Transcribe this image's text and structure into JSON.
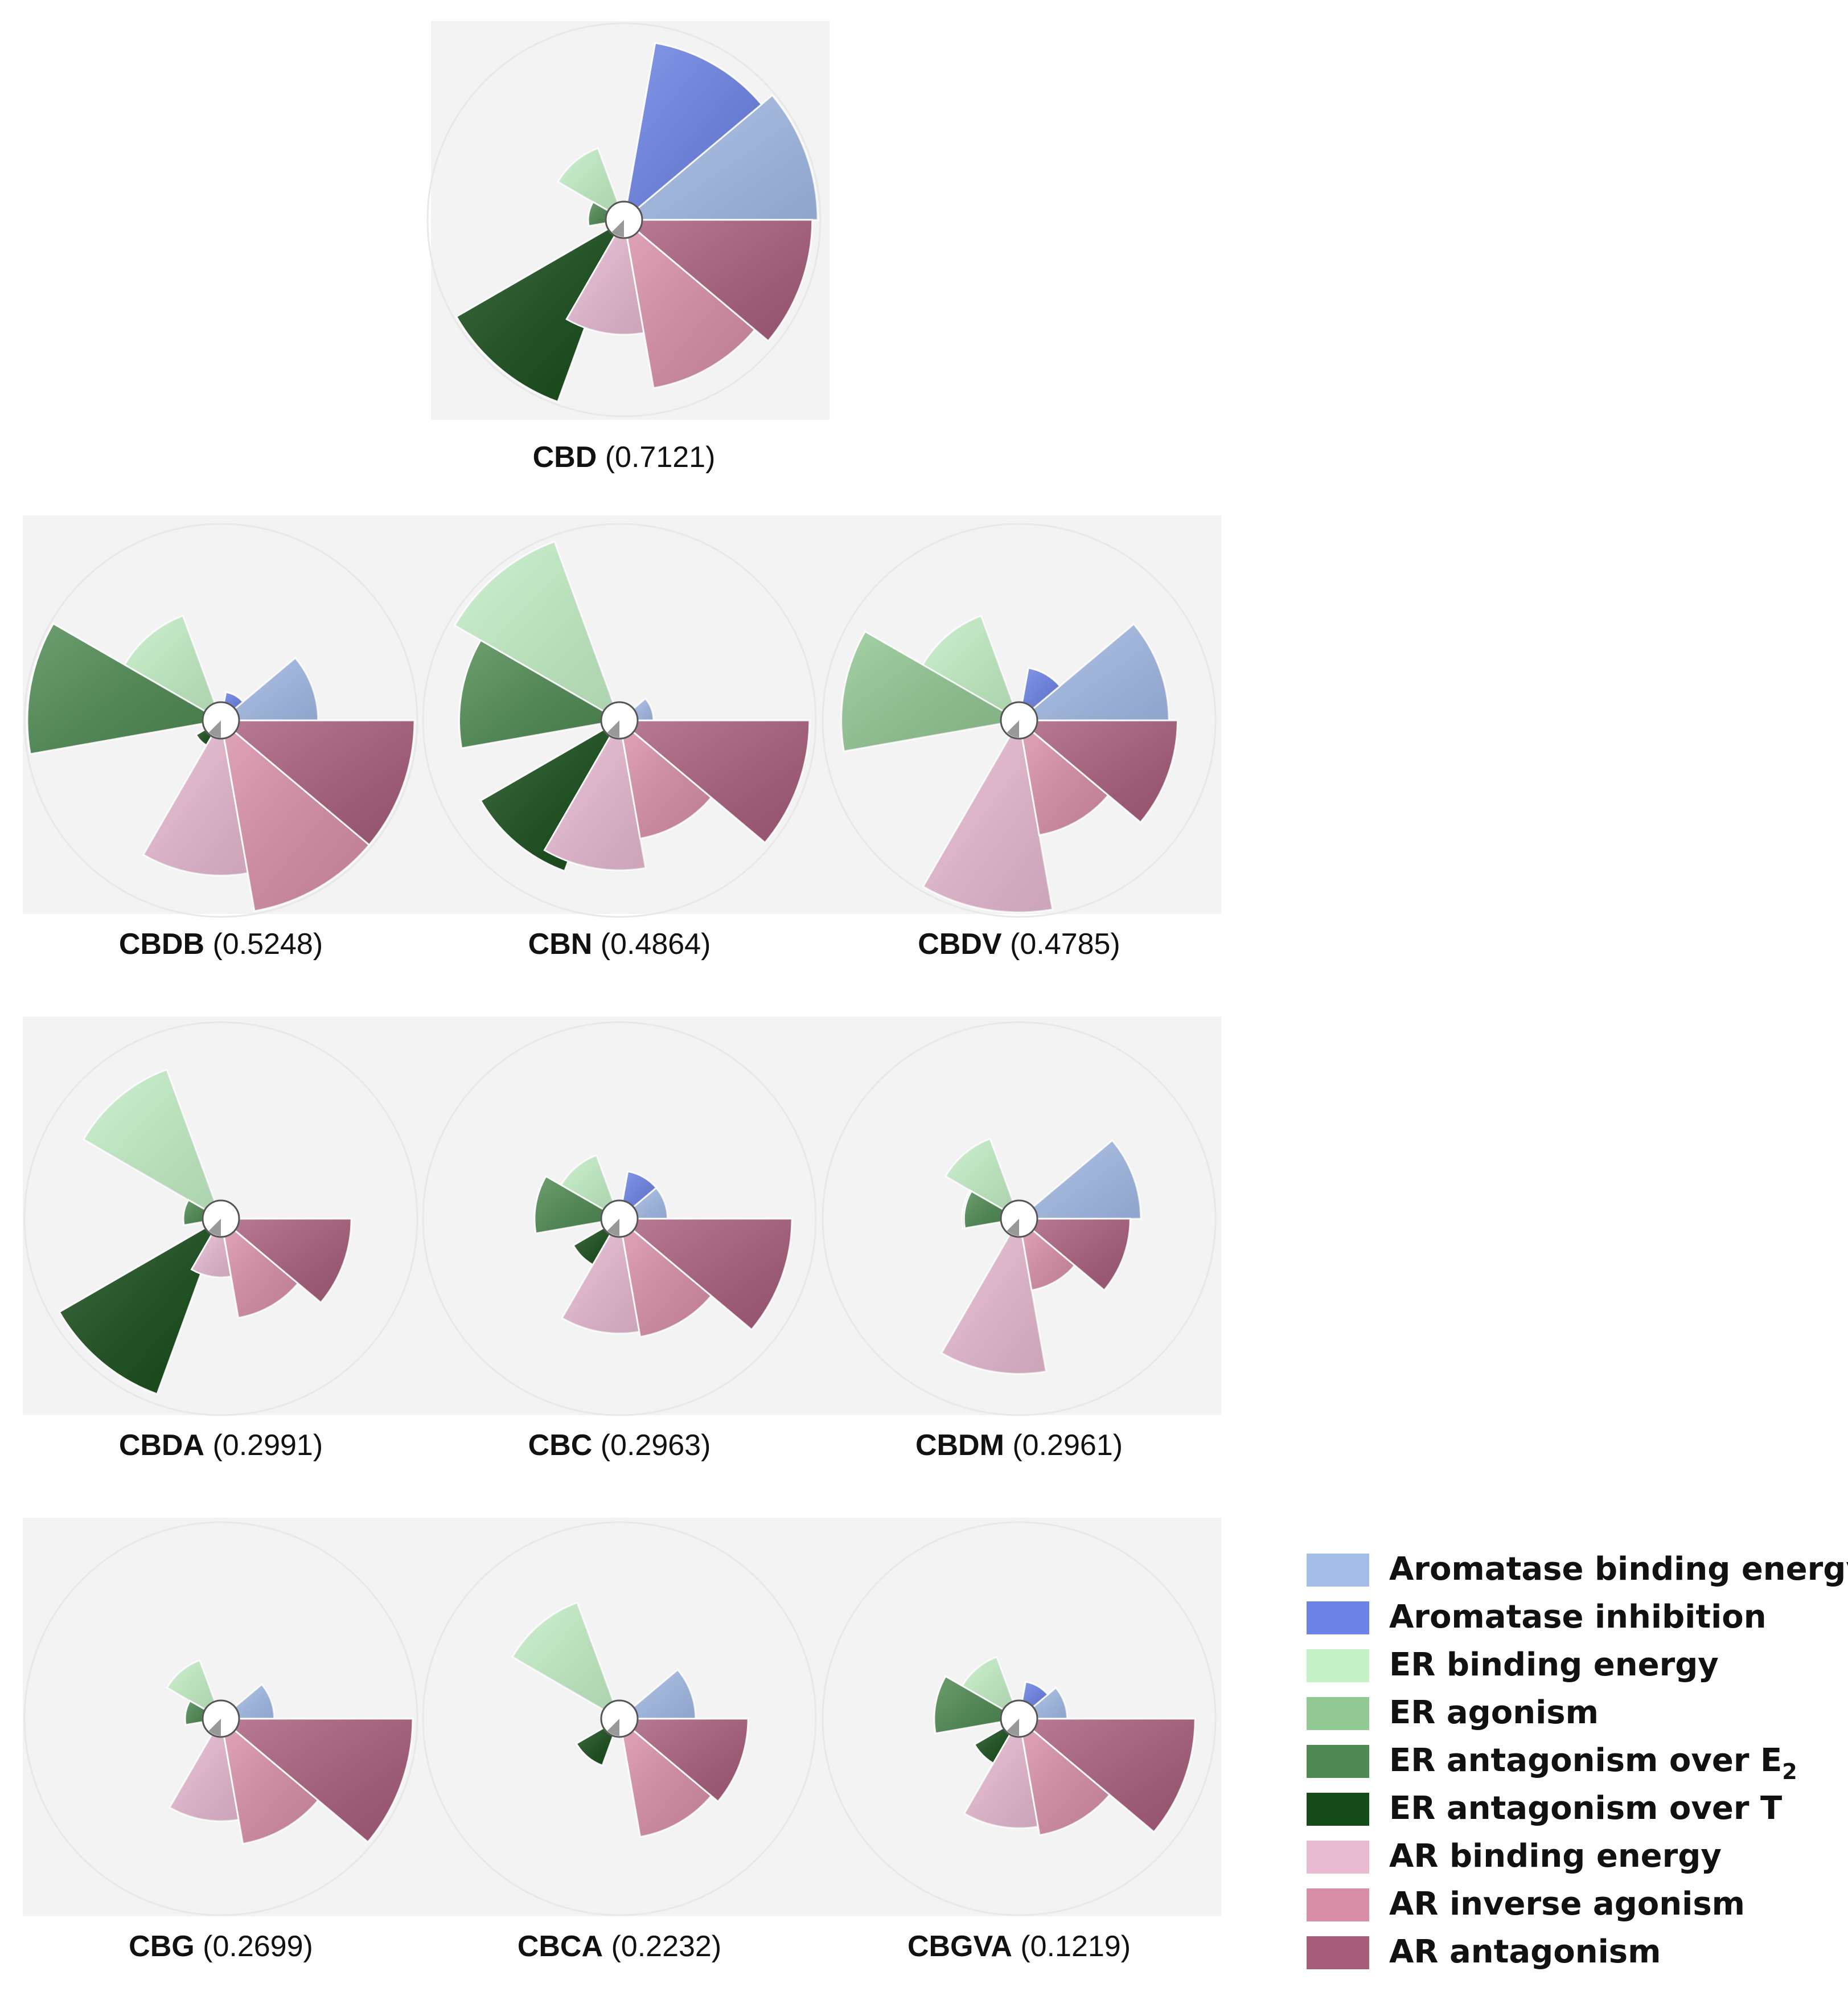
{
  "chart_data": {
    "type": "polar-area",
    "title": "",
    "categories": [
      "Aromatase binding energy",
      "Aromatase inhibition",
      "ER binding energy",
      "ER agonism",
      "ER antagonism over E",
      "ER antagonism over T",
      "AR binding energy",
      "AR inverse agonism",
      "AR antagonism"
    ],
    "legend": {
      "placement": "bottom-right",
      "entries": [
        {
          "label": "Aromatase binding energy",
          "sub": "",
          "color": "#a4bce8"
        },
        {
          "label": "Aromatase inhibition",
          "sub": "",
          "color": "#6b83e6"
        },
        {
          "label": "ER binding energy",
          "sub": "",
          "color": "#c5f1c7"
        },
        {
          "label": "ER agonism",
          "sub": "",
          "color": "#92c893"
        },
        {
          "label": "ER antagonism over E",
          "sub": "2",
          "color": "#4e8a52"
        },
        {
          "label": "ER antagonism over T",
          "sub": "",
          "color": "#164c19"
        },
        {
          "label": "AR binding energy",
          "sub": "",
          "color": "#e9bbd3"
        },
        {
          "label": "AR inverse agonism",
          "sub": "",
          "color": "#d88ea7"
        },
        {
          "label": "AR antagonism",
          "sub": "",
          "color": "#a85d7a"
        }
      ]
    },
    "scale_max": 1.0,
    "charts": [
      {
        "name": "CBD",
        "score": "(0.7121)",
        "values": [
          1.0,
          0.92,
          0.33,
          0.05,
          0.1,
          1.0,
          0.55,
          0.87,
          0.97
        ]
      },
      {
        "name": "CBDB",
        "score": "(0.5248)",
        "values": [
          0.45,
          0.06,
          0.53,
          0.39,
          1.0,
          0.06,
          0.78,
          1.0,
          1.0
        ]
      },
      {
        "name": "CBN",
        "score": "(0.4864)",
        "values": [
          0.09,
          0.0,
          0.98,
          0.0,
          0.81,
          0.81,
          0.75,
          0.58,
          0.98
        ]
      },
      {
        "name": "CBDV",
        "score": "(0.4785)",
        "values": [
          0.75,
          0.2,
          0.53,
          0.91,
          0.0,
          0.0,
          0.99,
          0.56,
          0.8
        ]
      },
      {
        "name": "CBDA",
        "score": "(0.2991)",
        "values": [
          0.0,
          0.0,
          0.8,
          0.08,
          0.11,
          0.96,
          0.23,
          0.47,
          0.64
        ]
      },
      {
        "name": "CBC",
        "score": "(0.2963)",
        "values": [
          0.17,
          0.17,
          0.28,
          0.0,
          0.38,
          0.2,
          0.55,
          0.58,
          0.88
        ]
      },
      {
        "name": "CBDM",
        "score": "(0.2961)",
        "values": [
          0.59,
          0.0,
          0.38,
          0.22,
          0.21,
          0.0,
          0.78,
          0.31,
          0.53
        ]
      },
      {
        "name": "CBG",
        "score": "(0.2699)",
        "values": [
          0.2,
          0.0,
          0.25,
          0.07,
          0.1,
          0.0,
          0.48,
          0.62,
          0.99
        ]
      },
      {
        "name": "CBCA",
        "score": "(0.2232)",
        "values": [
          0.33,
          0.0,
          0.6,
          0.0,
          0.0,
          0.18,
          0.0,
          0.58,
          0.63
        ]
      },
      {
        "name": "CBGVA",
        "score": "(0.1219)",
        "values": [
          0.17,
          0.11,
          0.27,
          0.0,
          0.38,
          0.19,
          0.52,
          0.57,
          0.9
        ]
      }
    ]
  }
}
